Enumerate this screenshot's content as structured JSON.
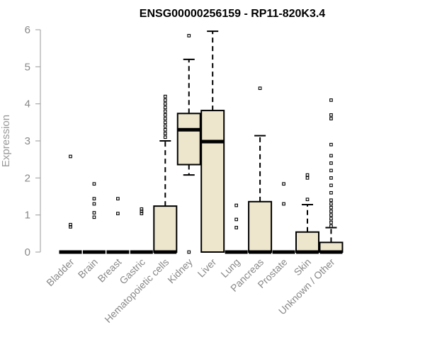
{
  "chart_data": {
    "type": "boxplot",
    "title": "ENSG00000256159 - RP11-820K3.4",
    "xlabel": "",
    "ylabel": "Expression",
    "ylim": [
      0,
      6
    ],
    "yticks": [
      0,
      1,
      2,
      3,
      4,
      5,
      6
    ],
    "grid": false,
    "legend": "none",
    "colors": {
      "box_fill": "#ede6cc",
      "stroke": "#000000",
      "axis": "#999999"
    },
    "categories": [
      "Bladder",
      "Brain",
      "Breast",
      "Gastric",
      "Hematopoietic cells",
      "Kidney",
      "Liver",
      "Lung",
      "Pancreas",
      "Prostate",
      "Skin",
      "Unknown / Other"
    ],
    "boxes": [
      {
        "category": "Bladder",
        "q1": 0,
        "median": 0,
        "q3": 0,
        "whisker_low": 0,
        "whisker_high": 0,
        "outliers": [
          0.68,
          0.74,
          2.58
        ]
      },
      {
        "category": "Brain",
        "q1": 0,
        "median": 0,
        "q3": 0,
        "whisker_low": 0,
        "whisker_high": 0,
        "outliers": [
          0.94,
          1.06,
          1.3,
          1.44,
          1.84
        ]
      },
      {
        "category": "Breast",
        "q1": 0,
        "median": 0,
        "q3": 0,
        "whisker_low": 0,
        "whisker_high": 0,
        "outliers": [
          1.04,
          1.44
        ]
      },
      {
        "category": "Gastric",
        "q1": 0,
        "median": 0,
        "q3": 0,
        "whisker_low": 0,
        "whisker_high": 0,
        "outliers": [
          1.04,
          1.1,
          1.16
        ]
      },
      {
        "category": "Hematopoietic cells",
        "q1": 0,
        "median": 0,
        "q3": 1.24,
        "whisker_low": 0,
        "whisker_high": 3.0,
        "outliers": [
          3.1,
          3.2,
          3.3,
          3.4,
          3.5,
          3.6,
          3.7,
          3.8,
          3.9,
          4.0,
          4.1,
          4.2
        ]
      },
      {
        "category": "Kidney",
        "q1": 2.36,
        "median": 3.3,
        "q3": 3.74,
        "whisker_low": 2.08,
        "whisker_high": 5.2,
        "outliers": [
          0.0,
          5.84
        ]
      },
      {
        "category": "Liver",
        "q1": 0,
        "median": 2.98,
        "q3": 3.82,
        "whisker_low": 0,
        "whisker_high": 5.96,
        "outliers": []
      },
      {
        "category": "Lung",
        "q1": 0,
        "median": 0,
        "q3": 0,
        "whisker_low": 0,
        "whisker_high": 0,
        "outliers": [
          0.66,
          0.88,
          1.26
        ]
      },
      {
        "category": "Pancreas",
        "q1": 0,
        "median": 0,
        "q3": 1.36,
        "whisker_low": 0,
        "whisker_high": 3.14,
        "outliers": [
          4.42
        ]
      },
      {
        "category": "Prostate",
        "q1": 0,
        "median": 0,
        "q3": 0,
        "whisker_low": 0,
        "whisker_high": 0,
        "outliers": [
          1.3,
          1.84
        ]
      },
      {
        "category": "Skin",
        "q1": 0,
        "median": 0,
        "q3": 0.54,
        "whisker_low": 0,
        "whisker_high": 1.28,
        "outliers": [
          1.42,
          2.0,
          2.08
        ]
      },
      {
        "category": "Unknown / Other",
        "q1": 0,
        "median": 0,
        "q3": 0.26,
        "whisker_low": 0,
        "whisker_high": 0.66,
        "outliers": [
          0.7,
          0.8,
          0.9,
          1.0,
          1.1,
          1.2,
          1.3,
          1.4,
          1.6,
          1.8,
          2.0,
          2.2,
          2.4,
          2.6,
          2.9,
          3.6,
          3.7,
          4.1
        ]
      }
    ]
  }
}
